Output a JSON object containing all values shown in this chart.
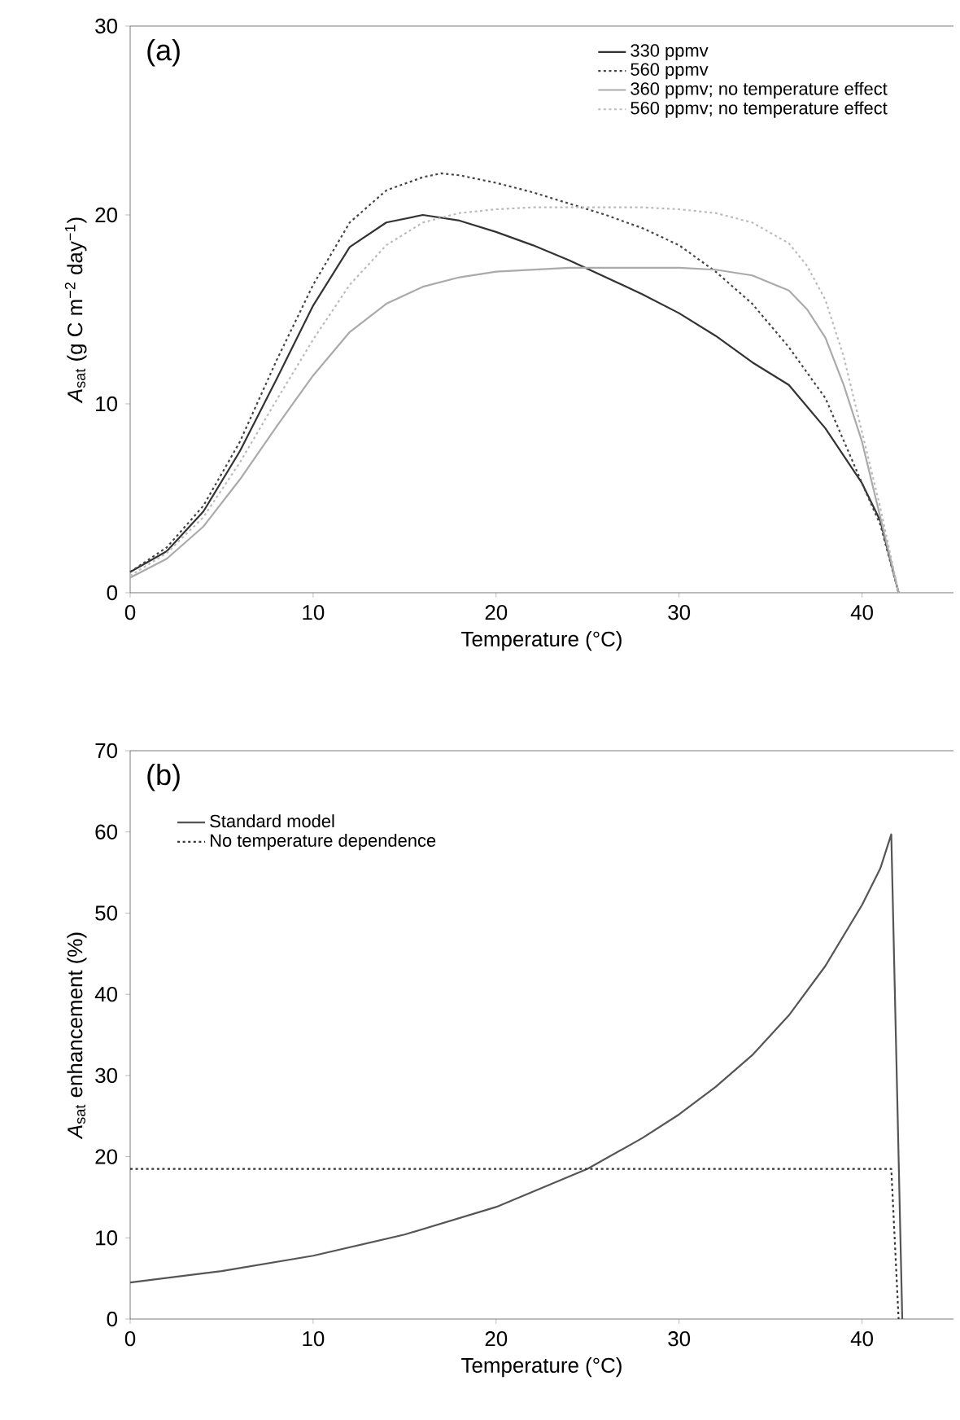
{
  "chart_data": [
    {
      "type": "line",
      "title": "(a)",
      "xlabel": "Temperature (°C)",
      "ylabel": "*A*$_{sat}$ (g C m$^{−2}$ day$^{−1}$)",
      "xlim": [
        0,
        45
      ],
      "xticks": [
        0,
        10,
        20,
        30,
        40
      ],
      "ylim": [
        0,
        30
      ],
      "yticks": [
        0,
        10,
        20,
        30
      ],
      "legend": "top right",
      "series": [
        {
          "name": "330 ppmv",
          "color": "#333333",
          "line_style": "solid",
          "x": [
            0,
            2,
            4,
            6,
            8,
            10,
            12,
            14,
            16,
            18,
            20,
            22,
            24,
            26,
            28,
            30,
            32,
            34,
            36,
            38,
            40,
            41,
            42
          ],
          "values": [
            1.1,
            2.2,
            4.3,
            7.5,
            11.3,
            15.2,
            18.3,
            19.6,
            20,
            19.7,
            19.1,
            18.4,
            17.6,
            16.7,
            15.8,
            14.8,
            13.6,
            12.2,
            11,
            8.7,
            5.8,
            3.8,
            0
          ]
        },
        {
          "name": "560 ppmv",
          "color": "#444444",
          "line_style": "dotted",
          "x": [
            0,
            2,
            4,
            6,
            8,
            10,
            12,
            14,
            16,
            17,
            18,
            20,
            22,
            24,
            26,
            28,
            30,
            32,
            34,
            36,
            38,
            40,
            41,
            42
          ],
          "values": [
            1.1,
            2.4,
            4.6,
            8,
            12.3,
            16.3,
            19.6,
            21.3,
            22,
            22.2,
            22.1,
            21.7,
            21.2,
            20.6,
            20,
            19.3,
            18.4,
            17,
            15.3,
            13,
            10.3,
            5.8,
            3.6,
            0
          ]
        },
        {
          "name": "360 ppmv; no temperature effect",
          "color": "#aaaaaa",
          "line_style": "solid",
          "x": [
            0,
            2,
            4,
            6,
            8,
            10,
            12,
            14,
            16,
            18,
            20,
            22,
            24,
            26,
            28,
            30,
            32,
            34,
            36,
            37,
            38,
            39,
            40,
            41,
            42
          ],
          "values": [
            0.8,
            1.8,
            3.5,
            6,
            8.8,
            11.5,
            13.8,
            15.3,
            16.2,
            16.7,
            17,
            17.1,
            17.2,
            17.2,
            17.2,
            17.2,
            17.1,
            16.8,
            16,
            15,
            13.5,
            11,
            8,
            4,
            0
          ]
        },
        {
          "name": "560 ppmv; no temperature effect",
          "color": "#bbbbbb",
          "line_style": "dotted",
          "x": [
            0,
            2,
            4,
            6,
            8,
            10,
            12,
            14,
            16,
            18,
            20,
            22,
            24,
            26,
            28,
            30,
            32,
            34,
            36,
            37,
            38,
            39,
            40,
            41,
            42
          ],
          "values": [
            0.9,
            2.1,
            4,
            6.9,
            10.2,
            13.4,
            16.3,
            18.4,
            19.6,
            20.1,
            20.3,
            20.4,
            20.4,
            20.4,
            20.4,
            20.3,
            20.1,
            19.6,
            18.5,
            17.3,
            15.5,
            12.5,
            8.5,
            4.5,
            0
          ]
        }
      ]
    },
    {
      "type": "line",
      "title": "(b)",
      "xlabel": "Temperature (°C)",
      "ylabel": "*A*$_{sat}$ enhancement (%)",
      "xlim": [
        0,
        45
      ],
      "xticks": [
        0,
        10,
        20,
        30,
        40
      ],
      "ylim": [
        0,
        70
      ],
      "yticks": [
        0,
        10,
        20,
        30,
        40,
        50,
        60,
        70
      ],
      "legend": "top left",
      "series": [
        {
          "name": "Standard model",
          "color": "#555555",
          "line_style": "solid",
          "x": [
            0,
            5,
            10,
            15,
            20,
            25,
            28,
            30,
            32,
            34,
            36,
            38,
            40,
            41,
            41.6,
            42.2
          ],
          "values": [
            4.5,
            5.9,
            7.8,
            10.4,
            13.8,
            18.5,
            22.3,
            25.2,
            28.6,
            32.5,
            37.4,
            43.5,
            51,
            55.5,
            59.7,
            0
          ]
        },
        {
          "name": "No temperature dependence",
          "color": "#333333",
          "line_style": "dotted",
          "x": [
            0,
            41.6,
            42
          ],
          "values": [
            18.5,
            18.5,
            0
          ]
        }
      ]
    }
  ]
}
